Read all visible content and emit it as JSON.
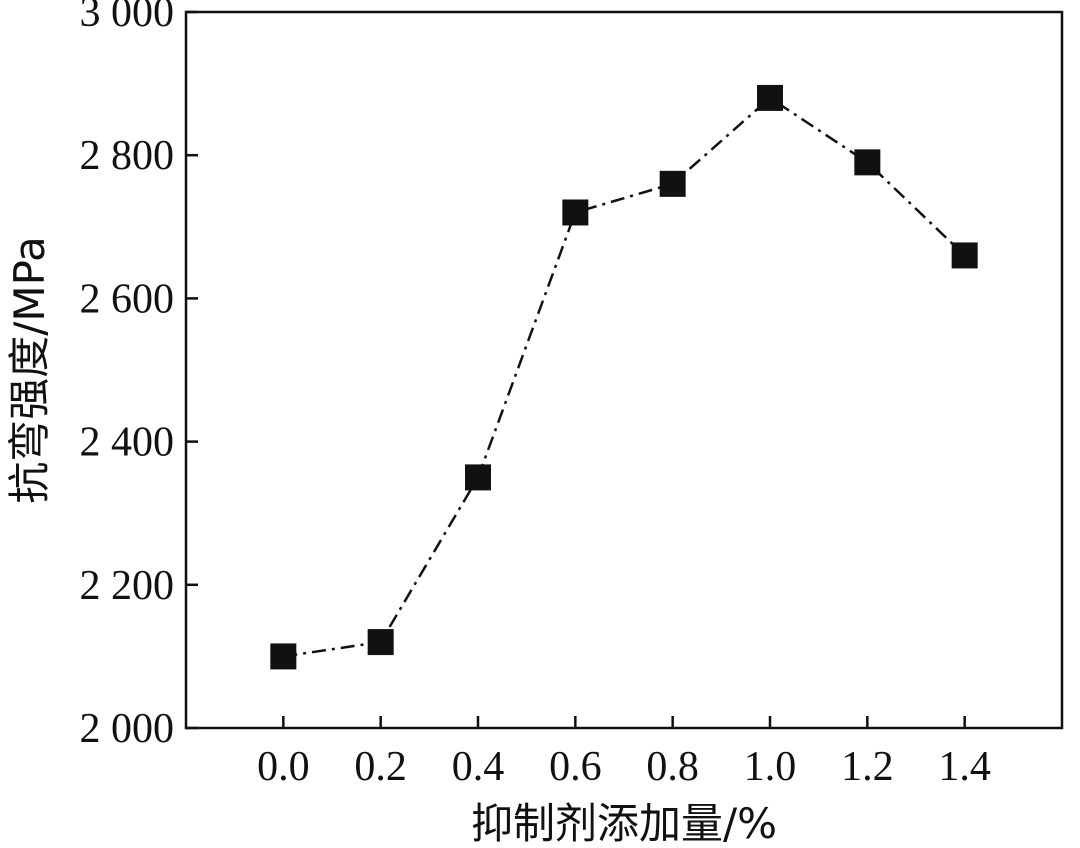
{
  "chart_data": {
    "type": "line",
    "title": "",
    "xlabel": "抑制剂添加量/%",
    "ylabel": "抗弯强度/MPa",
    "x": [
      0.0,
      0.2,
      0.4,
      0.6,
      0.8,
      1.0,
      1.2,
      1.4
    ],
    "xticks": [
      "0.0",
      "0.2",
      "0.4",
      "0.6",
      "0.8",
      "1.0",
      "1.2",
      "1.4"
    ],
    "xlim": [
      -0.2,
      1.6
    ],
    "ylim": [
      2000,
      3000
    ],
    "yticks": [
      2000,
      2200,
      2400,
      2600,
      2800,
      3000
    ],
    "ytick_labels": [
      "2 000",
      "2 200",
      "2 400",
      "2 600",
      "2 800",
      "3 000"
    ],
    "series": [
      {
        "values": [
          2100,
          2120,
          2350,
          2720,
          2760,
          2880,
          2790,
          2660
        ],
        "marker": "square",
        "line_style": "dash-dot",
        "color": "#111111"
      }
    ],
    "grid": false,
    "legend": "none"
  }
}
